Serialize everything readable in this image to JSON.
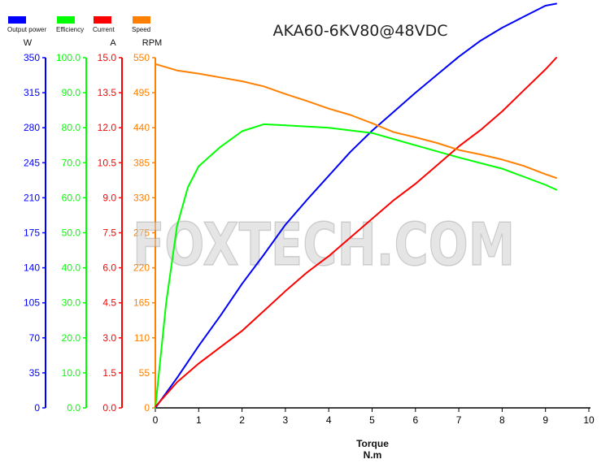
{
  "chart_data": {
    "type": "line",
    "title": "AKA60-6KV80@48VDC",
    "watermark": "FOXTECH.COM",
    "xlabel": "Torque",
    "xunit": "N.m",
    "xlim": [
      0,
      10
    ],
    "xticks": [
      "0",
      "1",
      "2",
      "3",
      "4",
      "5",
      "6",
      "7",
      "8",
      "9",
      "10"
    ],
    "legend_position": "top-left",
    "y_axes": [
      {
        "id": "power",
        "name": "Output power",
        "unit": "W",
        "color": "#0000ff",
        "ylim": [
          0,
          350
        ],
        "ticks": [
          "0",
          "35",
          "70",
          "105",
          "140",
          "175",
          "210",
          "245",
          "280",
          "315",
          "350"
        ]
      },
      {
        "id": "efficiency",
        "name": "Efficiency",
        "unit": "",
        "color": "#00ff00",
        "ylim": [
          0,
          100
        ],
        "ticks": [
          "0.0",
          "10.0",
          "20.0",
          "30.0",
          "40.0",
          "50.0",
          "60.0",
          "70.0",
          "80.0",
          "90.0",
          "100.0"
        ]
      },
      {
        "id": "current",
        "name": "Current",
        "unit": "A",
        "color": "#ff0000",
        "ylim": [
          0,
          15
        ],
        "ticks": [
          "0.0",
          "1.5",
          "3.0",
          "4.5",
          "6.0",
          "7.5",
          "9.0",
          "10.5",
          "12.0",
          "13.5",
          "15.0"
        ]
      },
      {
        "id": "speed",
        "name": "Speed",
        "unit": "RPM",
        "color": "#ff7f00",
        "ylim": [
          0,
          550
        ],
        "ticks": [
          "0",
          "55",
          "110",
          "165",
          "220",
          "275",
          "330",
          "385",
          "440",
          "495",
          "550"
        ]
      }
    ],
    "series": [
      {
        "name": "Output power",
        "axis": "power",
        "color": "#0000ff",
        "x": [
          0,
          0.5,
          1.0,
          1.5,
          2.0,
          2.5,
          3.0,
          3.5,
          4.0,
          4.5,
          5.0,
          5.5,
          6.0,
          6.5,
          7.0,
          7.5,
          8.0,
          8.5,
          9.0,
          9.25
        ],
        "y": [
          0,
          30,
          62,
          92,
          124,
          153,
          183,
          208,
          232,
          256,
          277,
          296,
          315,
          333,
          351,
          367,
          380,
          391,
          402,
          404
        ]
      },
      {
        "name": "Efficiency",
        "axis": "efficiency",
        "color": "#00ff00",
        "x": [
          0,
          0.25,
          0.5,
          0.75,
          1.0,
          1.5,
          2.0,
          2.5,
          3.0,
          4.0,
          5.0,
          6.0,
          7.0,
          8.0,
          8.5,
          9.0,
          9.25
        ],
        "y": [
          0,
          30,
          52,
          63,
          69,
          74.5,
          79,
          81,
          80.7,
          80,
          78.5,
          75,
          71.5,
          68.3,
          66,
          63.7,
          62.3
        ]
      },
      {
        "name": "Current",
        "axis": "current",
        "color": "#ff0000",
        "x": [
          0,
          0.5,
          1.0,
          1.5,
          2.0,
          2.5,
          3.0,
          3.5,
          4.0,
          4.5,
          5.0,
          5.5,
          6.0,
          6.5,
          7.0,
          7.5,
          8.0,
          8.5,
          9.0,
          9.25
        ],
        "y": [
          0.05,
          1.1,
          1.9,
          2.6,
          3.3,
          4.15,
          5.0,
          5.8,
          6.5,
          7.3,
          8.1,
          8.9,
          9.6,
          10.4,
          11.2,
          11.9,
          12.7,
          13.6,
          14.5,
          15.0
        ]
      },
      {
        "name": "Speed",
        "axis": "speed",
        "color": "#ff7f00",
        "x": [
          0,
          0.5,
          1.0,
          1.5,
          2.0,
          2.5,
          3.0,
          3.5,
          4.0,
          4.5,
          5.0,
          5.5,
          6.0,
          6.5,
          7.0,
          7.5,
          8.0,
          8.5,
          9.0,
          9.25
        ],
        "y": [
          540,
          530,
          525,
          519,
          513,
          505,
          493,
          482,
          470,
          460,
          447,
          433,
          425,
          416,
          405,
          398,
          390,
          380,
          367,
          361
        ]
      }
    ]
  }
}
